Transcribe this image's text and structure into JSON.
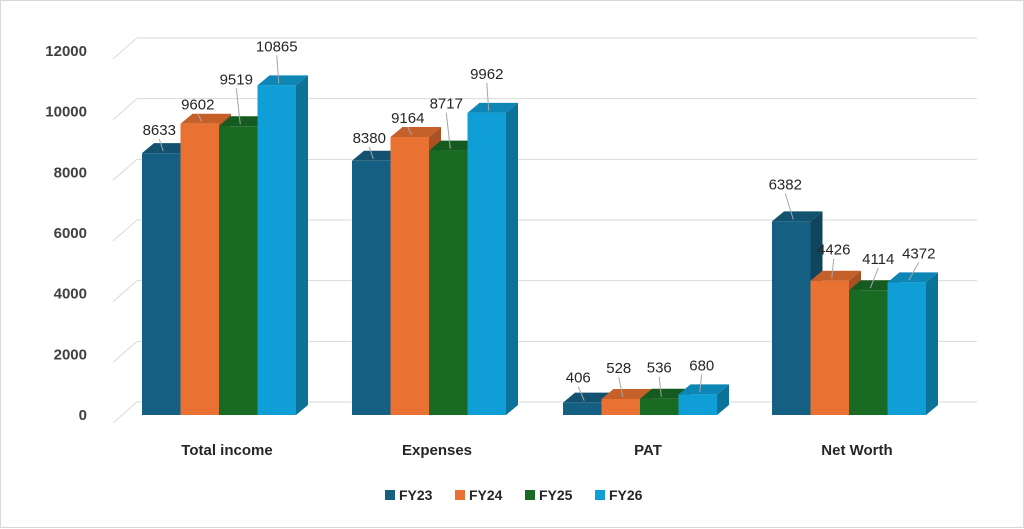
{
  "chart_data": {
    "type": "bar",
    "title": "",
    "xlabel": "",
    "ylabel": "",
    "categories": [
      "Total income",
      "Expenses",
      "PAT",
      "Net Worth"
    ],
    "series": [
      {
        "name": "FY23",
        "values": [
          8633,
          8380,
          406,
          6382
        ],
        "color": "#156082"
      },
      {
        "name": "FY24",
        "values": [
          9602,
          9164,
          528,
          4426
        ],
        "color": "#E97132"
      },
      {
        "name": "FY25",
        "values": [
          9519,
          8717,
          536,
          4114
        ],
        "color": "#196B24"
      },
      {
        "name": "FY26",
        "values": [
          10865,
          9962,
          680,
          4372
        ],
        "color": "#0F9ED5"
      }
    ],
    "ylim": [
      0,
      12000
    ],
    "yticks": [
      0,
      2000,
      4000,
      6000,
      8000,
      10000,
      12000
    ],
    "ytick_labels": [
      "0",
      "2000",
      "4000",
      "6000",
      "8000",
      "10000",
      "12000"
    ],
    "grid": true,
    "legend": "bottom",
    "style": "3d-clustered-column"
  }
}
